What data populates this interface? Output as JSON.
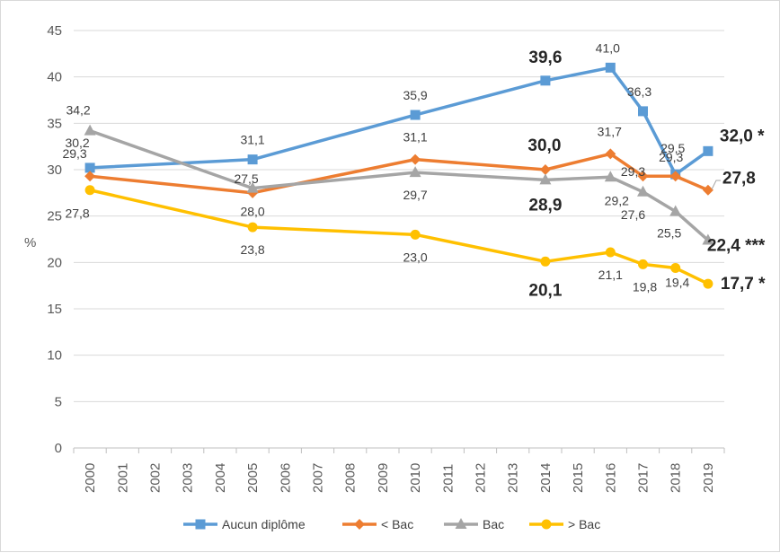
{
  "chart_data": {
    "type": "line",
    "title": "",
    "xlabel": "",
    "ylabel": "%",
    "ylim": [
      0,
      45
    ],
    "ytick_step": 5,
    "grid": "horizontal",
    "legend_position": "bottom",
    "x": [
      "2000",
      "2001",
      "2002",
      "2003",
      "2004",
      "2005",
      "2006",
      "2007",
      "2008",
      "2009",
      "2010",
      "2011",
      "2012",
      "2013",
      "2014",
      "2015",
      "2016",
      "2017",
      "2018",
      "2019"
    ],
    "series": [
      {
        "name": "Aucun diplôme",
        "color": "#5b9bd5",
        "marker": "square",
        "points": [
          [
            "2000",
            30.2
          ],
          [
            "2005",
            31.1
          ],
          [
            "2010",
            35.9
          ],
          [
            "2014",
            39.6
          ],
          [
            "2016",
            41.0
          ],
          [
            "2017",
            36.3
          ],
          [
            "2018",
            29.5
          ],
          [
            "2019",
            32.0
          ]
        ],
        "labels": [
          "30,2",
          "31,1",
          "35,9",
          "39,6",
          "41,0",
          "36,3",
          "29,5",
          "32,0 *"
        ]
      },
      {
        "name": "< Bac",
        "color": "#ed7d31",
        "marker": "diamond",
        "points": [
          [
            "2000",
            29.3
          ],
          [
            "2005",
            27.5
          ],
          [
            "2010",
            31.1
          ],
          [
            "2014",
            30.0
          ],
          [
            "2016",
            31.7
          ],
          [
            "2017",
            29.3
          ],
          [
            "2018",
            29.3
          ],
          [
            "2019",
            27.8
          ]
        ],
        "labels": [
          "29,3",
          "27,5",
          "31,1",
          "30,0",
          "31,7",
          "29,3",
          "29,3",
          "27,8"
        ]
      },
      {
        "name": "Bac",
        "color": "#a5a5a5",
        "marker": "triangle",
        "points": [
          [
            "2000",
            34.2
          ],
          [
            "2005",
            28.0
          ],
          [
            "2010",
            29.7
          ],
          [
            "2014",
            28.9
          ],
          [
            "2016",
            29.2
          ],
          [
            "2017",
            27.6
          ],
          [
            "2018",
            25.5
          ],
          [
            "2019",
            22.4
          ]
        ],
        "labels": [
          "34,2",
          "28,0",
          "29,7",
          "28,9",
          "29,2",
          "27,6",
          "25,5",
          "22,4 ***"
        ]
      },
      {
        "name": "> Bac",
        "color": "#ffc000",
        "marker": "circle",
        "points": [
          [
            "2000",
            27.8
          ],
          [
            "2005",
            23.8
          ],
          [
            "2010",
            23.0
          ],
          [
            "2014",
            20.1
          ],
          [
            "2016",
            21.1
          ],
          [
            "2017",
            19.8
          ],
          [
            "2018",
            19.4
          ],
          [
            "2019",
            17.7
          ]
        ],
        "labels": [
          "27,8",
          "23,8",
          "23,0",
          "20,1",
          "21,1",
          "19,8",
          "19,4",
          "17,7 *"
        ]
      }
    ]
  }
}
